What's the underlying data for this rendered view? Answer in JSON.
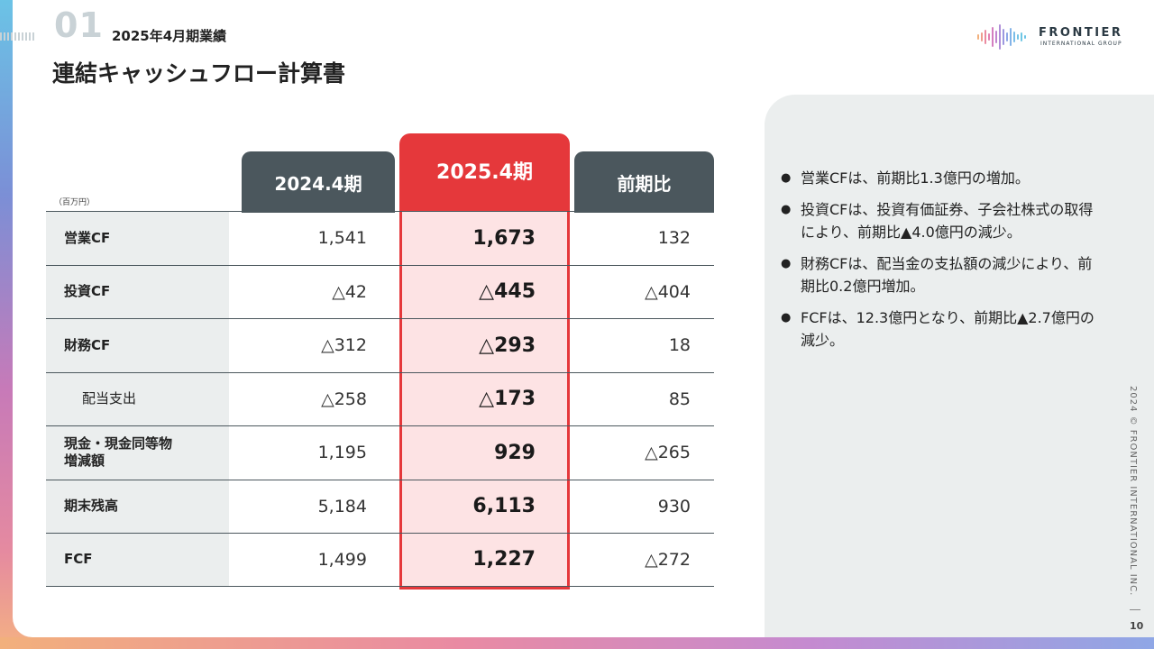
{
  "header": {
    "section_number": "01",
    "section_subtitle": "2025年4月期業績",
    "title": "連結キャッシュフロー計算書"
  },
  "logo": {
    "name": "FRONTIER",
    "subtitle": "INTERNATIONAL GROUP"
  },
  "table": {
    "unit": "（百万円）",
    "columns": [
      "2024.4期",
      "2025.4期",
      "前期比"
    ],
    "rows": [
      {
        "label": "営業CF",
        "v2024": "1,541",
        "v2025": "1,673",
        "diff": "132"
      },
      {
        "label": "投資CF",
        "v2024": "△42",
        "v2025": "△445",
        "diff": "△404"
      },
      {
        "label": "財務CF",
        "v2024": "△312",
        "v2025": "△293",
        "diff": "18"
      },
      {
        "label": "配当支出",
        "v2024": "△258",
        "v2025": "△173",
        "diff": "85"
      },
      {
        "label": "現金・現金同等物\n増減額",
        "v2024": "1,195",
        "v2025": "929",
        "diff": "△265"
      },
      {
        "label": "期末残高",
        "v2024": "5,184",
        "v2025": "6,113",
        "diff": "930"
      },
      {
        "label": "FCF",
        "v2024": "1,499",
        "v2025": "1,227",
        "diff": "△272"
      }
    ]
  },
  "bullets": [
    "営業CFは、前期比1.3億円の増加。",
    "投資CFは、投資有価証券、子会社株式の取得により、前期比▲4.0億円の減少。",
    "財務CFは、配当金の支払額の減少により、前期比0.2億円増加。",
    "FCFは、12.3億円となり、前期比▲2.7億円の減少。"
  ],
  "footer": {
    "copyright": "2024 © FRONTIER INTERNATIONAL INC.",
    "page_number": "10"
  },
  "colors": {
    "accent_red": "#e5383b",
    "header_gray": "#4b575d",
    "highlight_bg": "#fde3e4",
    "panel_bg": "#ebeeee"
  }
}
